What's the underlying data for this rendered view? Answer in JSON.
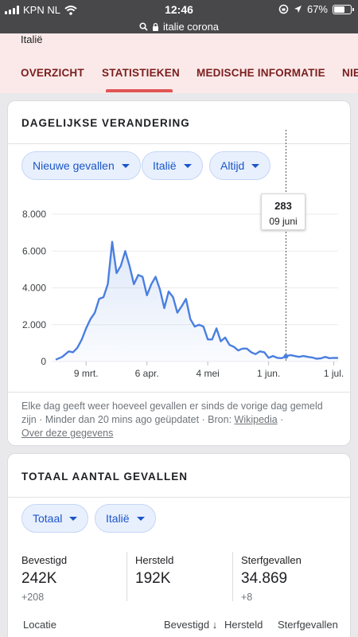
{
  "status": {
    "carrier": "KPN NL",
    "time": "12:46",
    "battery": "67%",
    "battery_level": 0.67
  },
  "url": {
    "text": "italie corona"
  },
  "header": {
    "topic": "Italië",
    "tabs": [
      {
        "label": "OVERZICHT"
      },
      {
        "label": "STATISTIEKEN"
      },
      {
        "label": "MEDISCHE INFORMATIE"
      },
      {
        "label": "NIE"
      }
    ]
  },
  "card1": {
    "title": "DAGELIJKSE VERANDERING",
    "filters": {
      "metric": "Nieuwe gevallen",
      "region": "Italië",
      "period": "Altijd"
    },
    "tooltip": {
      "value": "283",
      "date": "09 juni"
    },
    "footnote": {
      "text": "Elke dag geeft weer hoeveel gevallen er sinds de vorige dag gemeld zijn · Minder dan 20 mins ago geüpdatet · Bron: ",
      "source_link": "Wikipedia",
      "sep": " ·",
      "about_link": "Over deze gegevens"
    }
  },
  "chart_data": {
    "type": "area",
    "title": "DAGELIJKSE VERANDERING",
    "ylim": [
      0,
      8000
    ],
    "yticks": [
      "0",
      "2.000",
      "4.000",
      "6.000",
      "8.000"
    ],
    "xticks": [
      "9 mrt.",
      "6 apr.",
      "4 mei",
      "1 jun.",
      "1 jul."
    ],
    "x": [
      "2020-02-24",
      "2020-02-27",
      "2020-03-01",
      "2020-03-03",
      "2020-03-05",
      "2020-03-07",
      "2020-03-09",
      "2020-03-11",
      "2020-03-13",
      "2020-03-15",
      "2020-03-17",
      "2020-03-19",
      "2020-03-21",
      "2020-03-23",
      "2020-03-25",
      "2020-03-27",
      "2020-03-29",
      "2020-03-31",
      "2020-04-02",
      "2020-04-04",
      "2020-04-06",
      "2020-04-08",
      "2020-04-10",
      "2020-04-12",
      "2020-04-14",
      "2020-04-16",
      "2020-04-18",
      "2020-04-20",
      "2020-04-22",
      "2020-04-24",
      "2020-04-26",
      "2020-04-28",
      "2020-04-30",
      "2020-05-02",
      "2020-05-04",
      "2020-05-06",
      "2020-05-08",
      "2020-05-10",
      "2020-05-12",
      "2020-05-14",
      "2020-05-16",
      "2020-05-18",
      "2020-05-20",
      "2020-05-22",
      "2020-05-24",
      "2020-05-26",
      "2020-05-28",
      "2020-05-30",
      "2020-06-01",
      "2020-06-03",
      "2020-06-05",
      "2020-06-07",
      "2020-06-09",
      "2020-06-11",
      "2020-06-13",
      "2020-06-15",
      "2020-06-17",
      "2020-06-19",
      "2020-06-21",
      "2020-06-23",
      "2020-06-25",
      "2020-06-27",
      "2020-06-29",
      "2020-07-01",
      "2020-07-03"
    ],
    "values": [
      100,
      250,
      550,
      500,
      750,
      1200,
      1800,
      2300,
      2650,
      3400,
      3500,
      4200,
      6500,
      4800,
      5200,
      6000,
      5200,
      4200,
      4700,
      4600,
      3600,
      4200,
      4600,
      3900,
      2900,
      3800,
      3500,
      2650,
      3000,
      3400,
      2300,
      1900,
      2000,
      1900,
      1200,
      1200,
      1800,
      1100,
      1300,
      900,
      800,
      600,
      700,
      700,
      500,
      400,
      550,
      500,
      200,
      300,
      200,
      180,
      283,
      350,
      300,
      250,
      300,
      250,
      220,
      150,
      170,
      250,
      180,
      200,
      190
    ]
  },
  "card2": {
    "title": "TOTAAL AANTAL GEVALLEN",
    "filters": {
      "metric": "Totaal",
      "region": "Italië"
    },
    "stats": [
      {
        "label": "Bevestigd",
        "value": "242K",
        "delta": "+208"
      },
      {
        "label": "Hersteld",
        "value": "192K",
        "delta": ""
      },
      {
        "label": "Sterfgevallen",
        "value": "34.869",
        "delta": "+8"
      }
    ],
    "columns": [
      "Locatie",
      "Bevestigd",
      "Hersteld",
      "Sterfgevallen"
    ]
  }
}
